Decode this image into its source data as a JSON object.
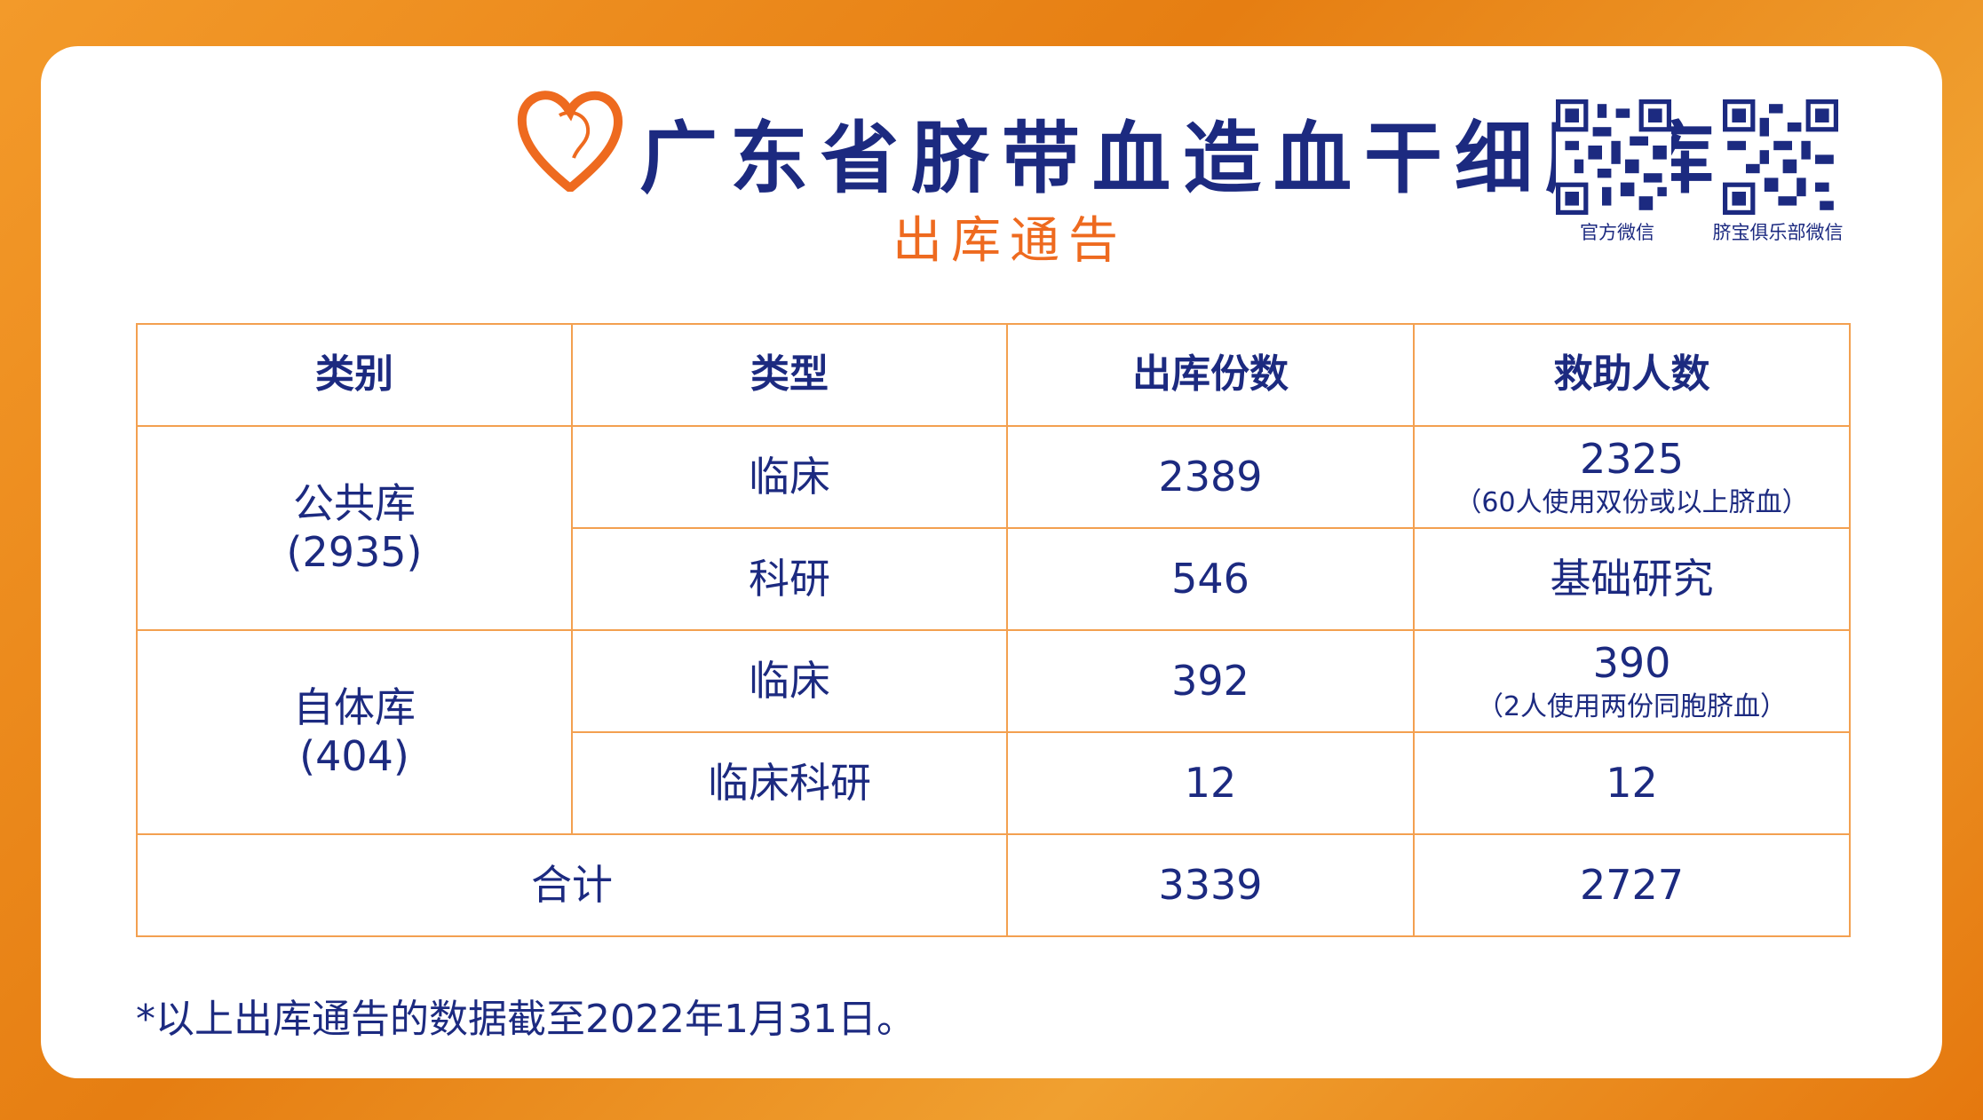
{
  "header": {
    "title": "广东省脐带血造血干细胞库",
    "subtitle": "出库通告",
    "qr_codes": [
      {
        "label": "官方微信",
        "icon": "qr-code-icon"
      },
      {
        "label": "脐宝俱乐部微信",
        "icon": "qr-code-icon"
      }
    ]
  },
  "colors": {
    "brand_orange": "#ee6a1f",
    "text_navy": "#1c2a80",
    "border": "#f3a050"
  },
  "table": {
    "headers": [
      "类别",
      "类型",
      "出库份数",
      "救助人数"
    ],
    "groups": [
      {
        "category": "公共库",
        "count": "(2935)",
        "rows": [
          {
            "type": "临床",
            "units": "2389",
            "helped": "2325",
            "note": "（60人使用双份或以上脐血）"
          },
          {
            "type": "科研",
            "units": "546",
            "helped": "基础研究"
          }
        ]
      },
      {
        "category": "自体库",
        "count": "(404)",
        "rows": [
          {
            "type": "临床",
            "units": "392",
            "helped": "390",
            "note": "（2人使用两份同胞脐血）"
          },
          {
            "type": "临床科研",
            "units": "12",
            "helped": "12"
          }
        ]
      }
    ],
    "total": {
      "label": "合计",
      "units": "3339",
      "helped": "2727"
    }
  },
  "footnote": "*以上出库通告的数据截至2022年1月31日。"
}
